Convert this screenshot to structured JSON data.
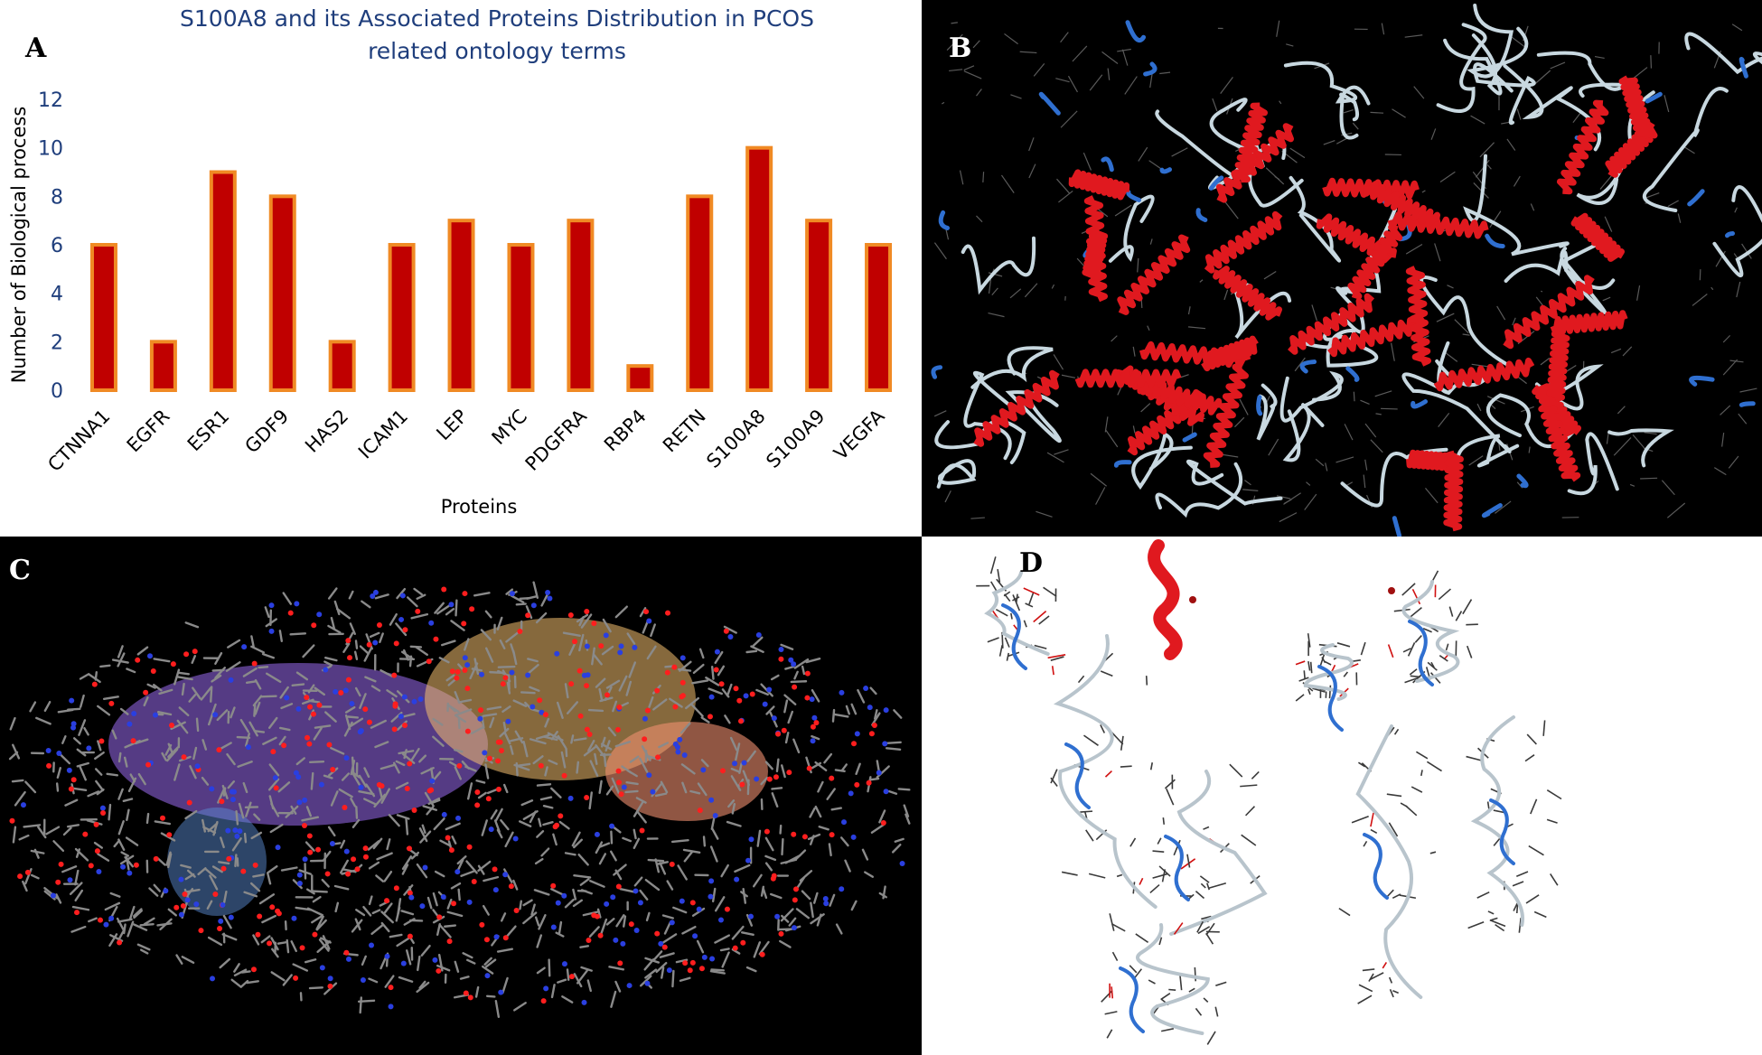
{
  "panels": {
    "a": "A",
    "b": "B",
    "c": "C",
    "d": "D"
  },
  "chart_data": {
    "type": "bar",
    "title_line1": "S100A8 and its Associated Proteins Distribution in PCOS",
    "title_line2": "related ontology terms",
    "xlabel": "Proteins",
    "ylabel": "Number of Biological process",
    "categories": [
      "CTNNA1",
      "EGFR",
      "ESR1",
      "GDF9",
      "HAS2",
      "ICAM1",
      "LEP",
      "MYC",
      "PDGFRA",
      "RBP4",
      "RETN",
      "S100A8",
      "S100A9",
      "VEGFA"
    ],
    "values": [
      6,
      2,
      9,
      8,
      2,
      6,
      7,
      6,
      7,
      1,
      8,
      10,
      7,
      6
    ],
    "ylim": [
      0,
      12
    ],
    "yticks": [
      0,
      2,
      4,
      6,
      8,
      10,
      12
    ],
    "grid": false,
    "bar_color": "#c00000",
    "bar_edge_color": "#f08a24",
    "title_color": "#1f3e7c"
  },
  "structures": {
    "ribbon_color": "#e0191f",
    "loop_color": "#c8d8e0",
    "strand_color": "#2f6fd0",
    "stick_carbon": "#8a8a8a",
    "oxygen": "#ff1e1e",
    "nitrogen": "#2a3fe0",
    "pocket_purple": "#9a6cf0",
    "pocket_gold": "#f4c070",
    "pocket_salmon": "#f09070",
    "pocket_blue": "#5a8ad0"
  }
}
